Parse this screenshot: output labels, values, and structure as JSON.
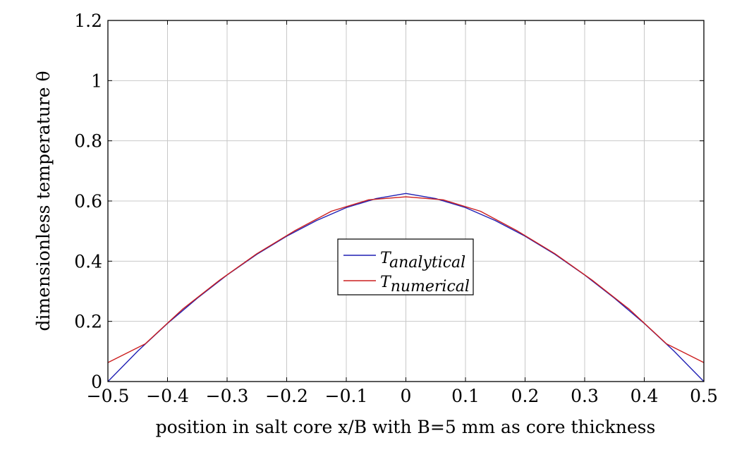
{
  "chart_data": {
    "type": "line",
    "xlabel": "position in salt core x/B with B=5 mm as core thickness",
    "ylabel": "dimensionless temperature θ",
    "xlim": [
      -0.5,
      0.5
    ],
    "ylim": [
      0,
      1.2
    ],
    "xticks": [
      "−0.5",
      "−0.4",
      "−0.3",
      "−0.2",
      "−0.1",
      "0",
      "0.1",
      "0.2",
      "0.3",
      "0.4",
      "0.5"
    ],
    "yticks": [
      "0",
      "0.2",
      "0.4",
      "0.6",
      "0.8",
      "1",
      "1.2"
    ],
    "grid": true,
    "legend_position": "center",
    "series": [
      {
        "name": "T_analytical",
        "color": "#1f1fb4",
        "x": [
          -0.5,
          -0.45,
          -0.4,
          -0.35,
          -0.3,
          -0.25,
          -0.2,
          -0.15,
          -0.1,
          -0.05,
          0,
          0.05,
          0.1,
          0.15,
          0.2,
          0.25,
          0.3,
          0.35,
          0.4,
          0.45,
          0.5
        ],
        "y": [
          0.0,
          0.101,
          0.193,
          0.277,
          0.354,
          0.423,
          0.483,
          0.535,
          0.578,
          0.608,
          0.625,
          0.608,
          0.578,
          0.535,
          0.483,
          0.423,
          0.354,
          0.277,
          0.193,
          0.101,
          0.0
        ]
      },
      {
        "name": "T_numerical",
        "color": "#cc1f1f",
        "x": [
          -0.5,
          -0.4375,
          -0.375,
          -0.3125,
          -0.25,
          -0.1875,
          -0.125,
          -0.0625,
          0,
          0.0625,
          0.125,
          0.1875,
          0.25,
          0.3125,
          0.375,
          0.4375,
          0.5
        ],
        "y": [
          0.063,
          0.125,
          0.24,
          0.337,
          0.425,
          0.5,
          0.566,
          0.604,
          0.614,
          0.604,
          0.566,
          0.5,
          0.425,
          0.337,
          0.24,
          0.125,
          0.063
        ]
      }
    ],
    "legend": [
      {
        "base": "T",
        "sub": "analytical"
      },
      {
        "base": "T",
        "sub": "numerical"
      }
    ]
  }
}
